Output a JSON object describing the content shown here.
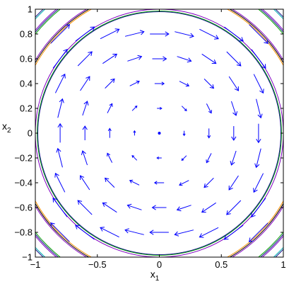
{
  "chart_data": {
    "type": "quiver",
    "title": "",
    "xlabel": {
      "base": "x",
      "sub": "1"
    },
    "ylabel": {
      "base": "x",
      "sub": "2"
    },
    "xlim": [
      -1,
      1
    ],
    "ylim": [
      -1,
      1
    ],
    "x_ticks": [
      -1,
      -0.5,
      0,
      0.5,
      1
    ],
    "x_tick_labels": [
      "−1",
      "−0.5",
      "0",
      "0.5",
      "1"
    ],
    "y_ticks": [
      -1,
      -0.8,
      -0.6,
      -0.4,
      -0.2,
      0,
      0.2,
      0.4,
      0.6,
      0.8,
      1
    ],
    "y_tick_labels": [
      "−1",
      "−0.8",
      "−0.6",
      "−0.4",
      "−0.2",
      "0",
      "0.2",
      "0.4",
      "0.6",
      "0.8",
      "1"
    ],
    "grid": false,
    "vector_field": {
      "rule": "u = x2, v = -x1 (clockwise rotation about the origin)",
      "grid_x": [
        -0.8,
        -0.6,
        -0.4,
        -0.2,
        0,
        0.2,
        0.4,
        0.6,
        0.8
      ],
      "grid_y": [
        -0.8,
        -0.6,
        -0.4,
        -0.2,
        0,
        0.2,
        0.4,
        0.6,
        0.8
      ],
      "color": "#0000ff"
    },
    "equilibrium_point": {
      "x": 0,
      "y": 0,
      "color": "#0000ff"
    },
    "level_curves": [
      {
        "radius": 1.0,
        "color": "#8000c0"
      },
      {
        "radius": 0.985,
        "color": "#00a000"
      },
      {
        "radius": 0.98,
        "color": "#1a1a8c"
      },
      {
        "radius": 1.14,
        "color": "#ff9000"
      },
      {
        "radius": 1.15,
        "color": "#000000"
      },
      {
        "radius": 1.16,
        "color": "#8000c0"
      },
      {
        "radius": 1.28,
        "color": "#00a000"
      },
      {
        "radius": 1.29,
        "color": "#1a1a8c"
      },
      {
        "radius": 1.3,
        "color": "#8000c0"
      },
      {
        "radius": 1.36,
        "color": "#00b0b0"
      },
      {
        "radius": 1.37,
        "color": "#1a1a8c"
      }
    ]
  }
}
